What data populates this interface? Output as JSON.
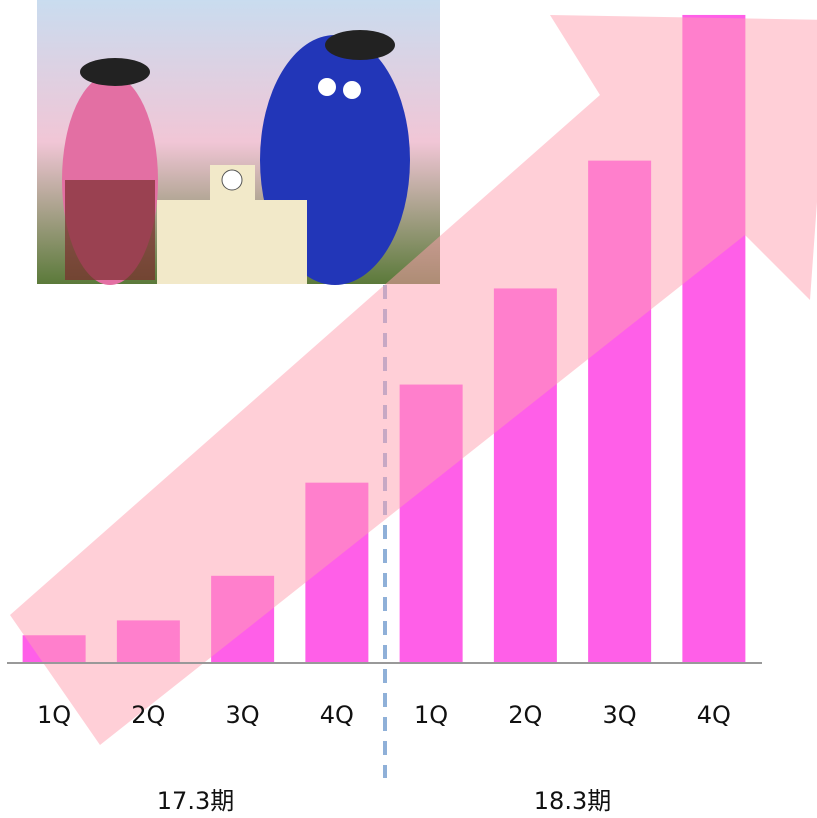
{
  "chart_data": {
    "type": "bar",
    "categories": [
      "1Q",
      "2Q",
      "3Q",
      "4Q",
      "1Q",
      "2Q",
      "3Q",
      "4Q"
    ],
    "values": [
      28,
      43,
      88,
      182,
      281,
      378,
      507,
      654
    ],
    "color": "#ff5fe8",
    "ylim": [
      0,
      660
    ],
    "period_labels": [
      "17.3期",
      "18.3期"
    ]
  }
}
